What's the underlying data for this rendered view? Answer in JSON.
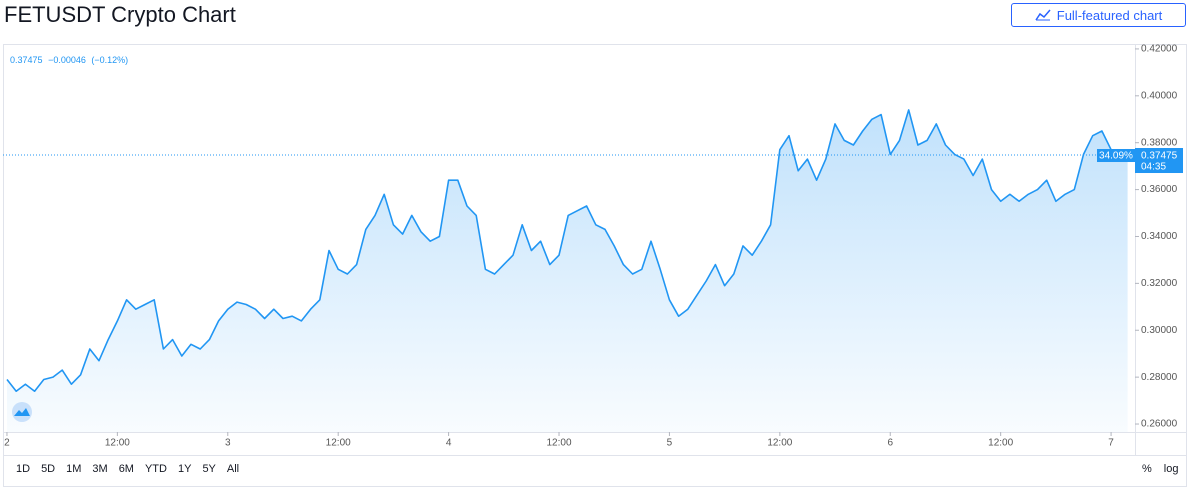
{
  "header": {
    "title": "FETUSDT Crypto Chart",
    "button": "Full-featured chart"
  },
  "chart_data": {
    "type": "area",
    "legend": {
      "price": "0.37475",
      "change": "−0.00046",
      "change_pct": "(−0.12%)"
    },
    "x": [
      0,
      1,
      2,
      3,
      4,
      5,
      6,
      7,
      8,
      9,
      10,
      11,
      12,
      13,
      14,
      15,
      16,
      17,
      18,
      19,
      20,
      21,
      22,
      23,
      24,
      25,
      26,
      27,
      28,
      29,
      30,
      31,
      32,
      33,
      34,
      35,
      36,
      37,
      38,
      39,
      40,
      41,
      42,
      43,
      44,
      45,
      46,
      47,
      48,
      49,
      50,
      51,
      52,
      53,
      54,
      55,
      56,
      57,
      58,
      59,
      60,
      61,
      62,
      63,
      64,
      65,
      66,
      67,
      68,
      69,
      70,
      71,
      72,
      73,
      74,
      75,
      76,
      77,
      78,
      79,
      80,
      81,
      82,
      83,
      84,
      85,
      86,
      87,
      88,
      89,
      90,
      91,
      92,
      93,
      94,
      95,
      96,
      97,
      98,
      99,
      100,
      101,
      102,
      103,
      104,
      105,
      106,
      107,
      108,
      109,
      110,
      111,
      112,
      113,
      114,
      115,
      116,
      117,
      118,
      119,
      120,
      121,
      121.8
    ],
    "values": [
      0.279,
      0.274,
      0.277,
      0.274,
      0.279,
      0.28,
      0.283,
      0.277,
      0.281,
      0.292,
      0.287,
      0.296,
      0.304,
      0.313,
      0.309,
      0.311,
      0.313,
      0.292,
      0.296,
      0.289,
      0.294,
      0.292,
      0.296,
      0.304,
      0.309,
      0.312,
      0.311,
      0.309,
      0.305,
      0.309,
      0.305,
      0.306,
      0.304,
      0.309,
      0.313,
      0.334,
      0.326,
      0.324,
      0.328,
      0.343,
      0.349,
      0.358,
      0.345,
      0.341,
      0.349,
      0.342,
      0.338,
      0.34,
      0.364,
      0.364,
      0.353,
      0.349,
      0.326,
      0.324,
      0.328,
      0.332,
      0.345,
      0.334,
      0.338,
      0.328,
      0.332,
      0.349,
      0.351,
      0.353,
      0.345,
      0.343,
      0.336,
      0.328,
      0.324,
      0.326,
      0.338,
      0.326,
      0.313,
      0.306,
      0.309,
      0.315,
      0.321,
      0.328,
      0.319,
      0.324,
      0.336,
      0.332,
      0.338,
      0.345,
      0.377,
      0.383,
      0.368,
      0.373,
      0.364,
      0.373,
      0.388,
      0.381,
      0.379,
      0.385,
      0.39,
      0.392,
      0.375,
      0.381,
      0.394,
      0.379,
      0.381,
      0.388,
      0.379,
      0.375,
      0.373,
      0.366,
      0.373,
      0.36,
      0.355,
      0.358,
      0.355,
      0.358,
      0.36,
      0.364,
      0.355,
      0.358,
      0.36,
      0.375,
      0.383,
      0.385,
      0.377,
      0.375,
      0.37475
    ],
    "color": "#2196f3",
    "xlim": [
      -0.43,
      122.6
    ],
    "xticks": [
      {
        "value": 0,
        "label": "2"
      },
      {
        "value": 12,
        "label": "12:00"
      },
      {
        "value": 24,
        "label": "3"
      },
      {
        "value": 36,
        "label": "12:00"
      },
      {
        "value": 48,
        "label": "4"
      },
      {
        "value": 60,
        "label": "12:00"
      },
      {
        "value": 72,
        "label": "5"
      },
      {
        "value": 84,
        "label": "12:00"
      },
      {
        "value": 96,
        "label": "6"
      },
      {
        "value": 108,
        "label": "12:00"
      },
      {
        "value": 120,
        "label": "7"
      }
    ],
    "ylim": [
      0.2566,
      0.4221
    ],
    "yticks": [
      {
        "value": 0.26,
        "label": "0.26000"
      },
      {
        "value": 0.28,
        "label": "0.28000"
      },
      {
        "value": 0.3,
        "label": "0.30000"
      },
      {
        "value": 0.32,
        "label": "0.32000"
      },
      {
        "value": 0.34,
        "label": "0.34000"
      },
      {
        "value": 0.36,
        "label": "0.36000"
      },
      {
        "value": 0.38,
        "label": "0.38000"
      },
      {
        "value": 0.4,
        "label": "0.40000"
      },
      {
        "value": 0.42,
        "label": "0.42000"
      }
    ],
    "last_price": {
      "value": 0.37475,
      "label": "0.37475",
      "change_pct": "34.09%",
      "countdown": "04:35"
    }
  },
  "toolbar": {
    "ranges": [
      "1D",
      "5D",
      "1M",
      "3M",
      "6M",
      "YTD",
      "1Y",
      "5Y",
      "All"
    ],
    "percent": "%",
    "log": "log"
  }
}
